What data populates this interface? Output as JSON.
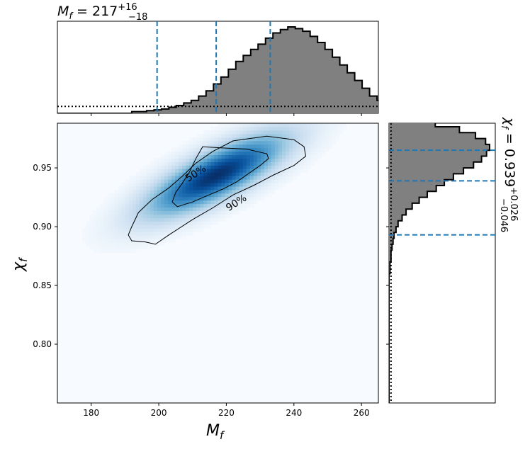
{
  "chart_data": [
    {
      "type": "heatmap",
      "panel": "joint",
      "xlabel": "M_f",
      "ylabel": "χ_f",
      "xlim": [
        170,
        265
      ],
      "ylim": [
        0.75,
        0.988
      ],
      "xticks": [
        180,
        200,
        220,
        240,
        260
      ],
      "yticks": [
        0.8,
        0.85,
        0.9,
        0.95
      ],
      "colormap": "Blues",
      "density_peak": {
        "x": 217,
        "y": 0.944
      },
      "contours": [
        {
          "label": "50%",
          "points": [
            [
              213,
              0.968
            ],
            [
              219,
              0.967
            ],
            [
              226,
              0.966
            ],
            [
              229,
              0.964
            ],
            [
              232,
              0.962
            ],
            [
              232.5,
              0.958
            ],
            [
              230,
              0.952
            ],
            [
              227,
              0.946
            ],
            [
              223,
              0.938
            ],
            [
              219,
              0.932
            ],
            [
              214,
              0.926
            ],
            [
              210,
              0.921
            ],
            [
              205.5,
              0.917
            ],
            [
              204,
              0.921
            ],
            [
              205,
              0.929
            ],
            [
              207,
              0.937
            ],
            [
              209,
              0.946
            ],
            [
              211,
              0.958
            ]
          ]
        },
        {
          "label": "90%",
          "points": [
            [
              222,
              0.973
            ],
            [
              232,
              0.977
            ],
            [
              240,
              0.974
            ],
            [
              243,
              0.968
            ],
            [
              243.5,
              0.96
            ],
            [
              240,
              0.952
            ],
            [
              234,
              0.944
            ],
            [
              228,
              0.935
            ],
            [
              222,
              0.927
            ],
            [
              216,
              0.916
            ],
            [
              210,
              0.906
            ],
            [
              203,
              0.893
            ],
            [
              199,
              0.885
            ],
            [
              196,
              0.887
            ],
            [
              192,
              0.888
            ],
            [
              191,
              0.893
            ],
            [
              192,
              0.9
            ],
            [
              194,
              0.912
            ],
            [
              198,
              0.923
            ],
            [
              203,
              0.933
            ],
            [
              207,
              0.943
            ],
            [
              211,
              0.954
            ],
            [
              216,
              0.964
            ]
          ]
        }
      ],
      "contour_labels": [
        {
          "text": "50%",
          "x": 211,
          "y": 0.945,
          "angle": -32
        },
        {
          "text": "90%",
          "x": 223,
          "y": 0.92,
          "angle": -32
        }
      ]
    },
    {
      "type": "bar",
      "panel": "top-marginal",
      "title": {
        "prefix": "M",
        "sub": "f",
        "value": " = 217",
        "plus": "+16",
        "minus": "−18"
      },
      "xlim": [
        170,
        265
      ],
      "bin_width": 2.2,
      "bin_start": 170,
      "values": [
        0,
        0,
        0,
        0,
        0,
        0,
        0,
        0,
        0,
        0,
        0.02,
        0.02,
        0.03,
        0.04,
        0.05,
        0.07,
        0.09,
        0.12,
        0.15,
        0.2,
        0.26,
        0.34,
        0.42,
        0.51,
        0.6,
        0.67,
        0.74,
        0.8,
        0.87,
        0.93,
        0.97,
        1.0,
        0.98,
        0.95,
        0.89,
        0.82,
        0.74,
        0.65,
        0.56,
        0.47,
        0.38,
        0.29,
        0.2,
        0.15,
        0.1,
        0.06,
        0.04,
        0.03,
        0.02,
        0.01,
        0,
        0,
        0,
        0,
        0,
        0,
        0,
        0,
        0,
        0,
        0,
        0,
        0,
        0
      ],
      "quantile_lines": [
        199.5,
        217,
        233
      ],
      "prior_level": 0.08
    },
    {
      "type": "bar",
      "panel": "right-marginal",
      "title": {
        "prefix": "χ",
        "sub": "f",
        "value": " = 0.939",
        "plus": "+0.026",
        "minus": "−0.046"
      },
      "ylim": [
        0.75,
        0.988
      ],
      "bin_width": 0.005,
      "bin_start": 0.75,
      "values": [
        0,
        0,
        0,
        0,
        0,
        0,
        0,
        0,
        0,
        0,
        0,
        0,
        0,
        0,
        0,
        0,
        0,
        0,
        0,
        0,
        0,
        0,
        0.01,
        0.01,
        0.02,
        0.02,
        0.03,
        0.04,
        0.05,
        0.07,
        0.09,
        0.13,
        0.17,
        0.23,
        0.3,
        0.38,
        0.47,
        0.55,
        0.64,
        0.74,
        0.84,
        0.92,
        0.97,
        1.0,
        0.96,
        0.86,
        0.7,
        0.46,
        0.25,
        0.1
      ],
      "quantile_lines": [
        0.893,
        0.939,
        0.965
      ],
      "prior_level": 0.02
    }
  ]
}
